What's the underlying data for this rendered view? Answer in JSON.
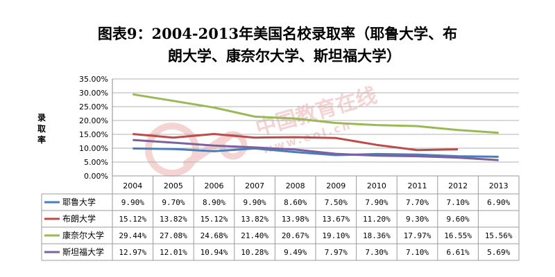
{
  "title_line1": "图表9：2004-2013年美国名校录取率（耶鲁大学、布",
  "title_line2": "朗大学、康奈尔大学、斯坦福大学）",
  "watermark": "中国教育在线",
  "watermark_url": "www.eol.cn",
  "chart_data": {
    "type": "line",
    "title": "图表9：2004-2013年美国名校录取率（耶鲁大学、布朗大学、康奈尔大学、斯坦福大学）",
    "ylabel": "录取率",
    "xlabel": "",
    "ylim": [
      0,
      35
    ],
    "yticks": [
      "0.00%",
      "5.00%",
      "10.00%",
      "15.00%",
      "20.00%",
      "25.00%",
      "30.00%",
      "35.00%"
    ],
    "grid": true,
    "legend": "data-table",
    "categories": [
      "2004",
      "2005",
      "2006",
      "2007",
      "2008",
      "2009",
      "2010",
      "2011",
      "2012",
      "2013"
    ],
    "series": [
      {
        "name": "耶鲁大学",
        "color": "#4a7ebb",
        "values": [
          9.9,
          9.7,
          8.9,
          9.9,
          8.6,
          7.5,
          7.9,
          7.7,
          7.1,
          6.9
        ],
        "labels": [
          "9.90%",
          "9.70%",
          "8.90%",
          "9.90%",
          "8.60%",
          "7.50%",
          "7.90%",
          "7.70%",
          "7.10%",
          "6.90%"
        ]
      },
      {
        "name": "布朗大学",
        "color": "#be4b48",
        "values": [
          15.12,
          13.82,
          15.12,
          13.82,
          13.98,
          13.67,
          11.2,
          9.3,
          9.6,
          null
        ],
        "labels": [
          "15.12%",
          "13.82%",
          "15.12%",
          "13.82%",
          "13.98%",
          "13.67%",
          "11.20%",
          "9.30%",
          "9.60%",
          ""
        ]
      },
      {
        "name": "康奈尔大学",
        "color": "#98b954",
        "values": [
          29.44,
          27.08,
          24.68,
          21.4,
          20.67,
          19.1,
          18.36,
          17.97,
          16.55,
          15.56
        ],
        "labels": [
          "29.44%",
          "27.08%",
          "24.68%",
          "21.40%",
          "20.67%",
          "19.10%",
          "18.36%",
          "17.97%",
          "16.55%",
          "15.56%"
        ]
      },
      {
        "name": "斯坦福大学",
        "color": "#7d60a0",
        "values": [
          12.97,
          12.01,
          10.94,
          10.28,
          9.49,
          7.97,
          7.3,
          7.1,
          6.61,
          5.69
        ],
        "labels": [
          "12.97%",
          "12.01%",
          "10.94%",
          "10.28%",
          "9.49%",
          "7.97%",
          "7.30%",
          "7.10%",
          "6.61%",
          "5.69%"
        ]
      }
    ]
  }
}
